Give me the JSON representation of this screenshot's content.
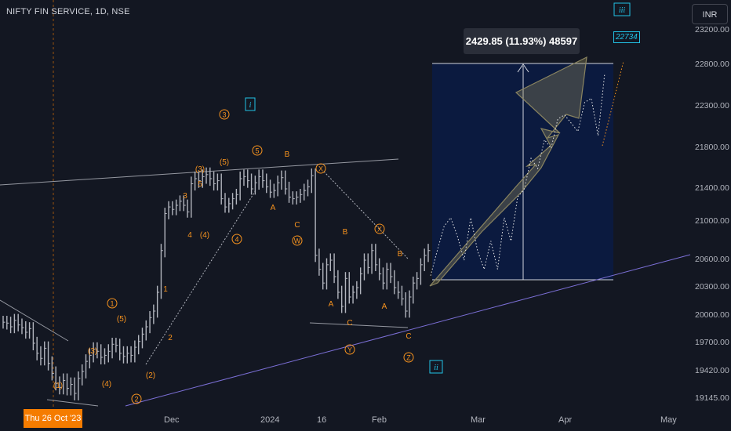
{
  "header": {
    "ticker": "NIFTY FIN SERVICE, 1D, NSE",
    "currency": "INR"
  },
  "measure": {
    "label": "2429.85 (11.93%) 48597"
  },
  "target_label": "22734",
  "date_badge": "Thu 26 Oct '23",
  "colors": {
    "background": "#131722",
    "bars": "#b2b5be",
    "wave_orange": "#f7931e",
    "wave_cyan": "#22c3e6",
    "trendline_purple": "#7b6fd6",
    "projection_fill": "#0d1b3e"
  },
  "chart_data": {
    "type": "bar",
    "y_axis": {
      "ticks": [
        23200,
        22800,
        22300,
        21800,
        21400,
        21000,
        20600,
        20300,
        20000,
        19700,
        19420,
        19145
      ],
      "ylim": [
        19000,
        23300
      ]
    },
    "x_axis": {
      "ticks": [
        "Dec",
        "2024",
        "16",
        "Feb",
        "Mar",
        "Apr",
        "May"
      ]
    },
    "price_series": [
      19930,
      19920,
      19880,
      19950,
      19900,
      19870,
      19820,
      19860,
      19700,
      19600,
      19550,
      19650,
      19500,
      19400,
      19300,
      19260,
      19330,
      19250,
      19290,
      19200,
      19350,
      19420,
      19520,
      19580,
      19640,
      19620,
      19560,
      19580,
      19620,
      19690,
      19680,
      19600,
      19570,
      19600,
      19580,
      19660,
      19720,
      19800,
      19880,
      19980,
      20050,
      20250,
      20700,
      21100,
      21180,
      21150,
      21200,
      21250,
      21200,
      21120,
      21450,
      21500,
      21480,
      21520,
      21540,
      21500,
      21450,
      21480,
      21280,
      21180,
      21220,
      21280,
      21330,
      21500,
      21520,
      21480,
      21400,
      21460,
      21520,
      21480,
      21420,
      21360,
      21380,
      21460,
      21510,
      21400,
      21300,
      21280,
      21300,
      21330,
      21380,
      21420,
      21530,
      20650,
      20500,
      20350,
      20550,
      20600,
      20420,
      20250,
      20100,
      20400,
      20200,
      20250,
      20300,
      20450,
      20600,
      20520,
      20700,
      20550,
      20450,
      20350,
      20500,
      20420,
      20300,
      20250,
      20180,
      20050,
      20200,
      20350,
      20400,
      20550,
      20650,
      20700
    ],
    "projection_path": [
      20430,
      20700,
      20950,
      21050,
      20850,
      20600,
      21050,
      20700,
      20500,
      20800,
      20500,
      21050,
      20800,
      21300,
      21400,
      21700,
      21600,
      21900,
      21800,
      22150,
      22200,
      22100,
      22000,
      22350,
      22400,
      21950,
      22700
    ],
    "projection_box": {
      "low": 20430,
      "high": 22860
    },
    "wave_labels": {
      "orange": [
        "(1)",
        "(2)",
        "(3)",
        "(4)",
        "(5)",
        "1",
        "2",
        "3",
        "4",
        "5",
        "(3)",
        "(4)",
        "(5)",
        "A",
        "B",
        "C",
        "A",
        "B",
        "C",
        "A",
        "B",
        "C"
      ],
      "circled_orange": [
        "1",
        "2",
        "3",
        "4",
        "5",
        "W",
        "X",
        "X",
        "Y",
        "Z"
      ],
      "cyan": [
        "i",
        "ii",
        "iii"
      ]
    }
  }
}
